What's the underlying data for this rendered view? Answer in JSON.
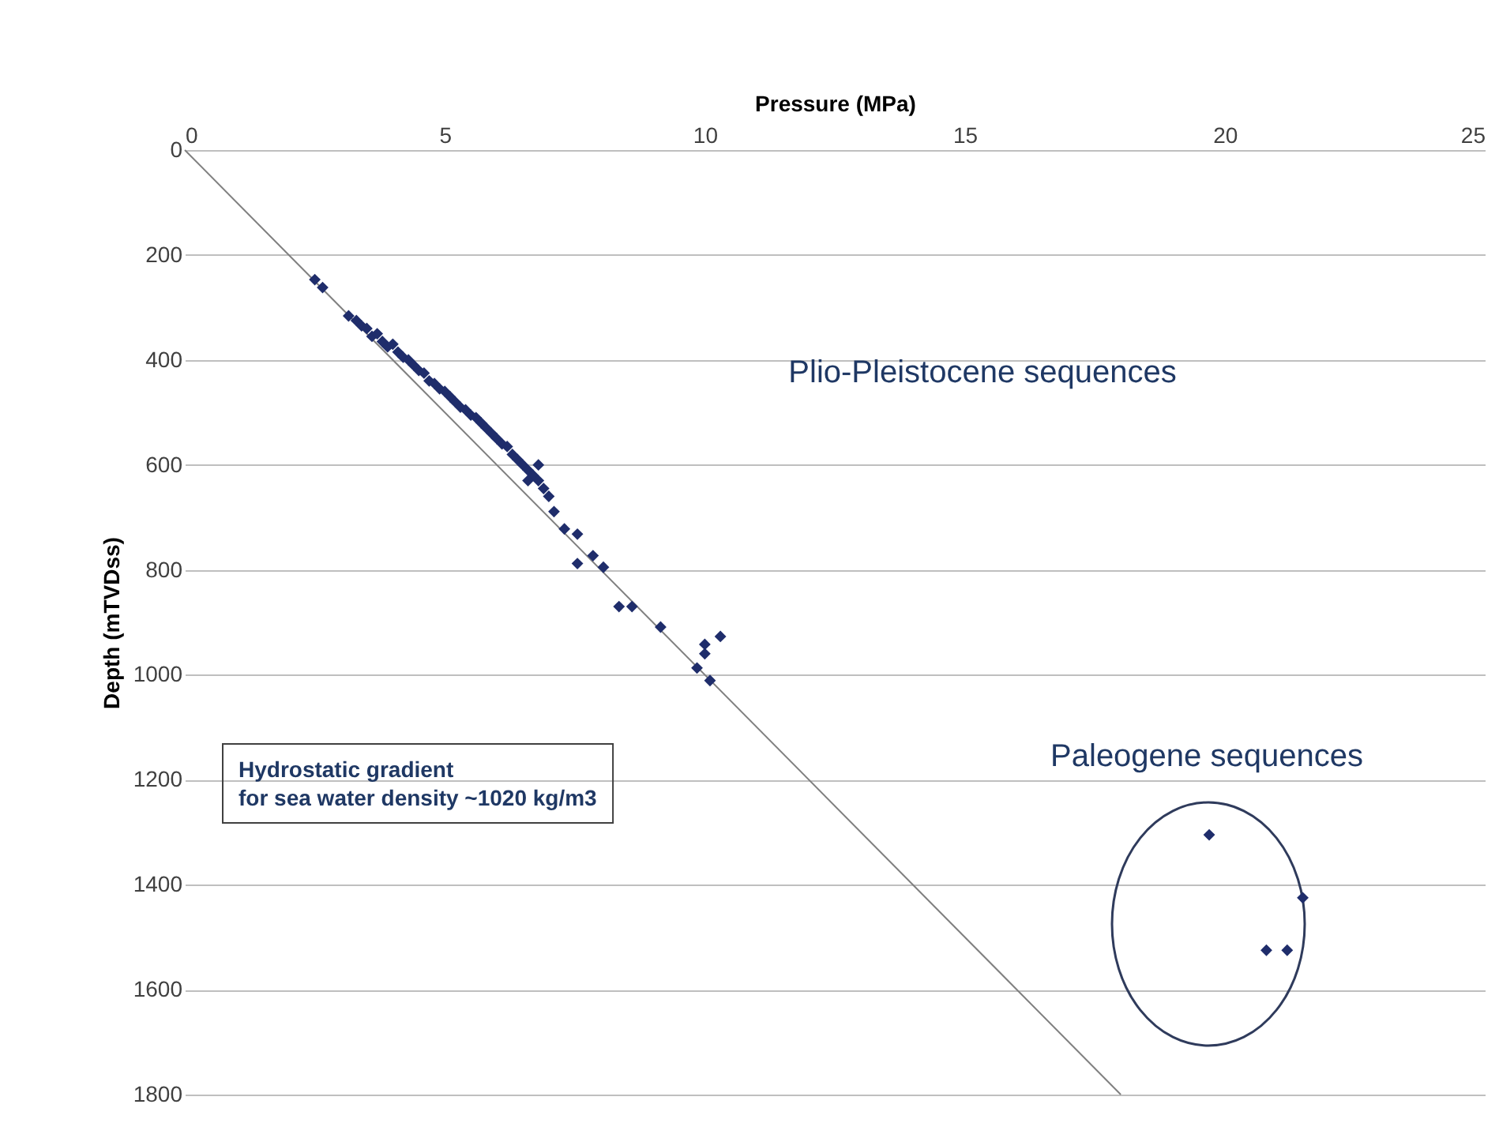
{
  "chart_data": {
    "type": "scatter",
    "xlabel": "Pressure (MPa)",
    "ylabel": "Depth (mTVDss)",
    "xlim": [
      0,
      25
    ],
    "xticks": [
      0,
      5,
      10,
      15,
      20,
      25
    ],
    "ylim": [
      1800,
      0
    ],
    "yticks": [
      0,
      200,
      400,
      600,
      800,
      1000,
      1200,
      1400,
      1600,
      1800
    ],
    "grid": "y",
    "marker": "diamond",
    "series": [
      {
        "type": "line",
        "marker": "none",
        "color": "#7f7f7f",
        "x": [
          0,
          18
        ],
        "values": [
          0,
          1800
        ]
      },
      {
        "color": "#1f2d6b",
        "x": [
          2.5,
          2.65,
          3.15,
          3.3,
          3.4,
          3.5,
          3.6,
          3.7,
          3.8,
          3.9,
          4.0,
          4.1,
          4.2,
          4.3,
          4.4,
          4.5,
          4.6,
          4.7,
          4.8,
          4.9,
          5.0,
          5.1,
          5.2,
          5.3,
          5.4,
          5.5,
          5.6,
          5.7,
          5.8,
          5.9,
          6.0,
          6.1,
          6.2,
          6.3,
          6.4,
          6.5,
          6.6,
          6.7,
          6.8,
          6.9,
          7.0,
          6.6,
          6.8,
          7.1,
          7.3,
          7.55,
          7.55,
          7.85,
          8.05,
          8.35,
          8.6,
          9.15,
          10.3,
          10.0,
          10.0,
          9.85,
          10.1
        ],
        "values": [
          247,
          262,
          316,
          325,
          335,
          340,
          355,
          350,
          365,
          375,
          370,
          385,
          395,
          400,
          410,
          420,
          425,
          440,
          445,
          455,
          460,
          470,
          480,
          490,
          495,
          505,
          510,
          520,
          530,
          540,
          550,
          560,
          565,
          580,
          590,
          600,
          610,
          620,
          630,
          645,
          660,
          630,
          600,
          689,
          722,
          732,
          788,
          773,
          795,
          870,
          870,
          909,
          927,
          942,
          960,
          987,
          1011
        ]
      },
      {
        "color": "#1f2d6b",
        "x": [
          19.7,
          21.5,
          20.8,
          21.2
        ],
        "values": [
          1305,
          1425,
          1525,
          1525
        ]
      }
    ],
    "annotations": [
      "Plio-Pleistocene sequences",
      "Paleogene sequences",
      "Hydrostatic gradient\nfor sea water density ~1020 kg/m3"
    ]
  }
}
